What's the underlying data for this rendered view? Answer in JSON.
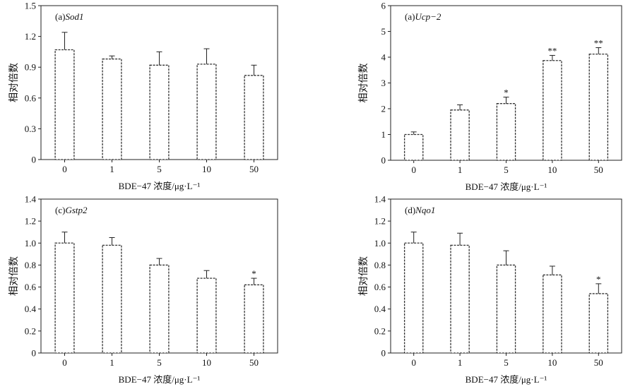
{
  "chart_data": [
    {
      "type": "bar",
      "panel_label": "(a)",
      "gene": "Sod1",
      "categories": [
        "0",
        "1",
        "5",
        "10",
        "50"
      ],
      "values": [
        1.07,
        0.98,
        0.92,
        0.93,
        0.82
      ],
      "errors": [
        0.17,
        0.03,
        0.13,
        0.15,
        0.1
      ],
      "significance": [
        "",
        "",
        "",
        "",
        ""
      ],
      "ylabel": "相对倍数",
      "xlabel": "BDE−47 浓度/μg·L⁻¹",
      "ylim": [
        0,
        1.5
      ],
      "yticks": [
        "0",
        "0.3",
        "0.6",
        "0.9",
        "1.2",
        "1.5"
      ]
    },
    {
      "type": "bar",
      "panel_label": "(a)",
      "gene": "Ucp−2",
      "categories": [
        "0",
        "1",
        "5",
        "10",
        "50"
      ],
      "values": [
        1.0,
        1.95,
        2.2,
        3.87,
        4.12
      ],
      "errors": [
        0.1,
        0.2,
        0.25,
        0.2,
        0.25
      ],
      "significance": [
        "",
        "",
        "*",
        "**",
        "**"
      ],
      "ylabel": "相对倍数",
      "xlabel": "BDE−47 浓度/μg·L⁻¹",
      "ylim": [
        0,
        6
      ],
      "yticks": [
        "0",
        "1",
        "2",
        "3",
        "4",
        "5",
        "6"
      ]
    },
    {
      "type": "bar",
      "panel_label": "(c)",
      "gene": "Gstp2",
      "categories": [
        "0",
        "1",
        "5",
        "10",
        "50"
      ],
      "values": [
        1.0,
        0.98,
        0.8,
        0.68,
        0.62
      ],
      "errors": [
        0.1,
        0.07,
        0.06,
        0.07,
        0.06
      ],
      "significance": [
        "",
        "",
        "",
        "",
        "*"
      ],
      "ylabel": "相对倍数",
      "xlabel": "BDE−47 浓度/μg·L⁻¹",
      "ylim": [
        0,
        1.4
      ],
      "yticks": [
        "0",
        "0.2",
        "0.4",
        "0.6",
        "0.8",
        "1.0",
        "1.2",
        "1.4"
      ]
    },
    {
      "type": "bar",
      "panel_label": "(d)",
      "gene": "Nqo1",
      "categories": [
        "0",
        "1",
        "5",
        "10",
        "50"
      ],
      "values": [
        1.0,
        0.98,
        0.8,
        0.71,
        0.54
      ],
      "errors": [
        0.1,
        0.11,
        0.13,
        0.08,
        0.09
      ],
      "significance": [
        "",
        "",
        "",
        "",
        "*"
      ],
      "ylabel": "相对倍数",
      "xlabel": "BDE−47 浓度/μg·L⁻¹",
      "ylim": [
        0,
        1.4
      ],
      "yticks": [
        "0",
        "0.2",
        "0.4",
        "0.6",
        "0.8",
        "1.0",
        "1.2",
        "1.4"
      ]
    }
  ]
}
